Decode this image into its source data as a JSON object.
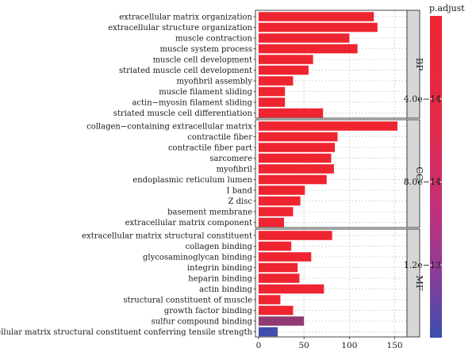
{
  "chart_data": {
    "type": "bar",
    "orientation": "horizontal",
    "xlim": [
      0,
      160
    ],
    "xticks": [
      0,
      50,
      100,
      150
    ],
    "grid": "dotted vertical",
    "panels": [
      {
        "label": "BP",
        "categories": [
          "extracellular matrix organization",
          "extracellular structure organization",
          "muscle contraction",
          "muscle system process",
          "muscle cell development",
          "striated muscle cell development",
          "myofibril assembly",
          "muscle filament sliding",
          "actin−myosin filament sliding",
          "striated muscle cell differentiation"
        ],
        "values": [
          127,
          131,
          100,
          109,
          60,
          55,
          38,
          29,
          29,
          71
        ],
        "p_adjust": [
          1e-20,
          1e-20,
          1e-20,
          1e-20,
          1e-20,
          1e-20,
          1e-20,
          1e-20,
          1e-20,
          1e-20
        ]
      },
      {
        "label": "CC",
        "categories": [
          "collagen−containing extracellular matrix",
          "contractile fiber",
          "contractile fiber part",
          "sarcomere",
          "myofibril",
          "endoplasmic reticulum lumen",
          "I band",
          "Z disc",
          "basement membrane",
          "extracellular matrix component"
        ],
        "values": [
          153,
          87,
          84,
          80,
          83,
          75,
          51,
          46,
          38,
          28
        ],
        "p_adjust": [
          1e-20,
          1e-20,
          1e-20,
          1e-20,
          1e-20,
          1e-20,
          1e-20,
          1e-20,
          1e-20,
          1e-20
        ]
      },
      {
        "label": "MF",
        "categories": [
          "extracellular matrix structural constituent",
          "collagen binding",
          "glycosaminoglycan binding",
          "integrin binding",
          "heparin binding",
          "actin binding",
          "structural constituent of muscle",
          "growth factor binding",
          "sulfur compound binding",
          "extracellular matrix structural constituent conferring tensile strength"
        ],
        "values": [
          81,
          36,
          58,
          43,
          45,
          72,
          24,
          38,
          50,
          21
        ],
        "p_adjust": [
          1e-20,
          1e-20,
          1e-20,
          1e-20,
          1e-20,
          1e-20,
          1e-20,
          1e-20,
          8e-14,
          1.5e-13
        ]
      }
    ],
    "legend": {
      "title": "p.adjust",
      "placement": "right",
      "ticks": [
        {
          "value": 4e-14,
          "label": "4.0e−14"
        },
        {
          "value": 8e-14,
          "label": "8.0e−14"
        },
        {
          "value": 1.2e-13,
          "label": "1.2e−13"
        }
      ],
      "range": [
        0,
        1.55e-13
      ],
      "colors": {
        "low": "#ee2530",
        "high": "#3a4fb0"
      }
    }
  }
}
